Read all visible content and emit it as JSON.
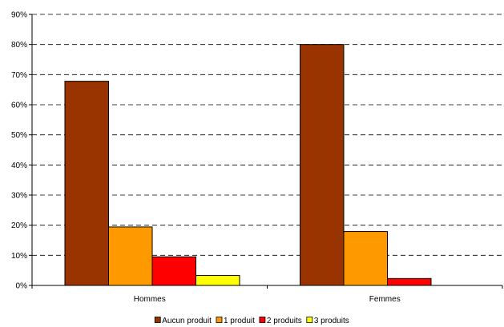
{
  "chart_data": {
    "type": "bar",
    "categories": [
      "Hommes",
      "Femmes"
    ],
    "series": [
      {
        "name": "Aucun produit",
        "color": "#993300",
        "values": [
          67.8,
          80.0
        ]
      },
      {
        "name": "1 produit",
        "color": "#FF9900",
        "values": [
          19.4,
          17.9
        ]
      },
      {
        "name": "2 produits",
        "color": "#FF0000",
        "values": [
          9.5,
          2.3
        ]
      },
      {
        "name": "3 produits",
        "color": "#FFFF00",
        "values": [
          3.3,
          0
        ]
      }
    ],
    "ylim": [
      0,
      90
    ],
    "yticks": [
      0,
      10,
      20,
      30,
      40,
      50,
      60,
      70,
      80,
      90
    ],
    "ytick_suffix": "%",
    "grid": true,
    "legend_position": "bottom"
  }
}
